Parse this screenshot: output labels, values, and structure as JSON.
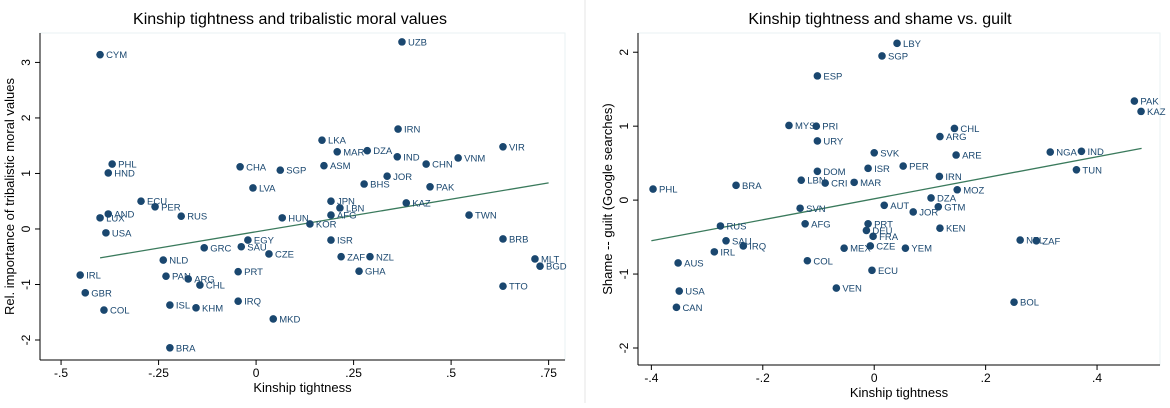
{
  "chart_data": [
    {
      "type": "scatter",
      "title": "Kinship tightness and tribalistic moral values",
      "xlabel": "Kinship tightness",
      "ylabel": "Rel. importance of tribalistic moral values",
      "color": "#1a476f",
      "fit_color": "#3a7a5c",
      "xlim": [
        -0.554,
        0.792
      ],
      "ylim": [
        -2.36,
        3.53
      ],
      "xticks": [
        {
          "value": -0.5,
          "label": "-.5"
        },
        {
          "value": -0.25,
          "label": "-.25"
        },
        0,
        {
          "value": 0.25,
          "label": ".25"
        },
        {
          "value": 0.5,
          "label": ".5"
        },
        {
          "value": 0.75,
          "label": ".75"
        }
      ],
      "yticks": [
        -2,
        -1,
        0,
        1,
        2,
        3
      ],
      "labels": [
        "CYM",
        "UZB",
        "IRN",
        "LKA",
        "PHL",
        "HND",
        "MAR",
        "DZA",
        "VIR",
        "IND",
        "VNM",
        "CHN",
        "JOR",
        "PAK",
        "ASM",
        "CHA",
        "SGP",
        "LVA",
        "ECU",
        "PER",
        "AND",
        "LUX",
        "RUS",
        "JPN",
        "BHS",
        "KAZ",
        "TWN",
        "HUN",
        "KOR",
        "AFG",
        "LBN",
        "BRB",
        "ISR",
        "MLT",
        "BGD",
        "TTO",
        "ZAF",
        "NZL",
        "GHA",
        "CZE",
        "GRC",
        "SAU",
        "NLD",
        "GBR",
        "ISL",
        "KHM",
        "IRQ",
        "MKD",
        "BRA",
        "COL",
        "ARG",
        "PRT",
        "IRL",
        "CHL",
        "PAN",
        "EGY",
        "USA"
      ],
      "x": [
        -0.4,
        0.374,
        0.364,
        0.169,
        -0.369,
        -0.379,
        0.208,
        0.285,
        0.633,
        0.362,
        0.518,
        0.436,
        0.336,
        0.446,
        0.174,
        -0.041,
        0.062,
        -0.008,
        -0.295,
        -0.259,
        -0.379,
        -0.4,
        -0.192,
        0.192,
        0.277,
        0.385,
        0.546,
        0.067,
        0.138,
        0.192,
        0.215,
        0.633,
        0.192,
        0.715,
        0.728,
        0.633,
        0.218,
        0.292,
        0.264,
        0.033,
        -0.133,
        -0.038,
        -0.238,
        -0.438,
        -0.221,
        -0.154,
        -0.046,
        0.044,
        -0.221,
        -0.39,
        -0.174,
        -0.046,
        -0.451,
        -0.144,
        -0.231,
        -0.021,
        -0.385
      ],
      "y": [
        3.14,
        3.37,
        1.8,
        1.6,
        1.17,
        1.01,
        1.39,
        1.41,
        1.48,
        1.3,
        1.28,
        1.17,
        0.95,
        0.76,
        1.14,
        1.12,
        1.06,
        0.74,
        0.5,
        0.4,
        0.27,
        0.2,
        0.23,
        0.5,
        0.81,
        0.47,
        0.25,
        0.2,
        0.09,
        0.25,
        0.38,
        -0.18,
        -0.2,
        -0.54,
        -0.67,
        -1.03,
        -0.5,
        -0.5,
        -0.76,
        -0.45,
        -0.34,
        -0.32,
        -0.56,
        -1.15,
        -1.37,
        -1.42,
        -1.3,
        -1.62,
        -2.14,
        -1.46,
        -0.9,
        -0.77,
        -0.83,
        -1.01,
        -0.85,
        -0.2,
        -0.07
      ],
      "fit": {
        "x": [
          -0.4,
          0.75
        ],
        "y": [
          -0.52,
          0.83
        ]
      }
    },
    {
      "type": "scatter",
      "title": "Kinship tightness and shame vs. guilt",
      "xlabel": "Kinship tightness",
      "ylabel": "Shame -- guilt (Google searches)",
      "color": "#1a476f",
      "fit_color": "#3a7a5c",
      "xlim": [
        -0.424,
        0.513
      ],
      "ylim": [
        -2.23,
        2.26
      ],
      "xticks": [
        {
          "value": -0.4,
          "label": "-.4"
        },
        {
          "value": -0.2,
          "label": "-.2"
        },
        0,
        {
          "value": 0.2,
          "label": ".2"
        },
        {
          "value": 0.4,
          "label": ".4"
        }
      ],
      "yticks": [
        -2,
        -1,
        0,
        1,
        2
      ],
      "labels": [
        "LBY",
        "SGP",
        "ESP",
        "PAK",
        "KAZ",
        "MYS",
        "PRI",
        "URY",
        "CHL",
        "ARG",
        "ARE",
        "NGA",
        "IND",
        "TUN",
        "SVK",
        "ISR",
        "PER",
        "IRN",
        "DOM",
        "LBN",
        "CRI",
        "MAR",
        "BRA",
        "MOZ",
        "PHL",
        "DZA",
        "AUT",
        "JOR",
        "GTM",
        "SVN",
        "AFG",
        "PRT",
        "DEU",
        "FRA",
        "KEN",
        "RUS",
        "SAU",
        "IRL",
        "IRQ",
        "COL",
        "MEX",
        "CZE",
        "YEM",
        "ECU",
        "NZL",
        "ZAF",
        "AUS",
        "USA",
        "CAN",
        "VEN",
        "BOL"
      ],
      "x": [
        0.041,
        0.014,
        -0.102,
        0.467,
        0.479,
        -0.153,
        -0.104,
        -0.102,
        0.144,
        0.118,
        0.147,
        0.316,
        0.372,
        0.363,
        0,
        -0.011,
        0.052,
        0.117,
        -0.102,
        -0.131,
        -0.088,
        -0.036,
        -0.248,
        0.149,
        -0.397,
        0.102,
        0.018,
        0.07,
        0.115,
        -0.133,
        -0.124,
        -0.011,
        -0.014,
        -0.002,
        0.118,
        -0.276,
        -0.266,
        -0.287,
        -0.235,
        -0.12,
        -0.054,
        -0.007,
        0.056,
        -0.004,
        0.262,
        0.291,
        -0.352,
        -0.35,
        -0.355,
        -0.068,
        0.251
      ],
      "y": [
        2.12,
        1.95,
        1.68,
        1.34,
        1.2,
        1.01,
        1.0,
        0.8,
        0.97,
        0.86,
        0.61,
        0.65,
        0.66,
        0.41,
        0.64,
        0.43,
        0.46,
        0.32,
        0.39,
        0.27,
        0.23,
        0.24,
        0.2,
        0.14,
        0.15,
        0.03,
        -0.07,
        -0.16,
        -0.09,
        -0.11,
        -0.32,
        -0.32,
        -0.41,
        -0.49,
        -0.38,
        -0.35,
        -0.55,
        -0.7,
        -0.62,
        -0.82,
        -0.65,
        -0.62,
        -0.65,
        -0.95,
        -0.54,
        -0.55,
        -0.85,
        -1.23,
        -1.45,
        -1.19,
        -1.38
      ],
      "fit": {
        "x": [
          -0.4,
          0.48
        ],
        "y": [
          -0.55,
          0.7
        ]
      }
    }
  ]
}
